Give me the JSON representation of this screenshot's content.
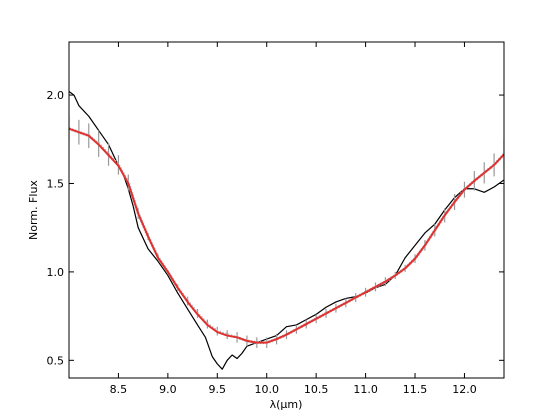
{
  "chart_data": {
    "type": "line",
    "title": "",
    "xlabel": "λ(μm)",
    "ylabel": "Norm. Flux",
    "xlim": [
      8.0,
      12.4
    ],
    "ylim": [
      0.4,
      2.3
    ],
    "xticks": [
      8.5,
      9.0,
      9.5,
      10.0,
      10.5,
      11.0,
      11.5,
      12.0
    ],
    "xtick_labels": [
      "8.5",
      "9.0",
      "9.5",
      "10.0",
      "10.5",
      "11.0",
      "11.5",
      "12.0"
    ],
    "yticks": [
      0.5,
      1.0,
      1.5,
      2.0
    ],
    "ytick_labels": [
      "0.5",
      "1.0",
      "1.5",
      "2.0"
    ],
    "grid": false,
    "series": [
      {
        "role": "observed",
        "color": "#000000",
        "style": "solid",
        "x": [
          8.0,
          8.05,
          8.1,
          8.2,
          8.3,
          8.4,
          8.5,
          8.55,
          8.6,
          8.65,
          8.7,
          8.8,
          8.9,
          9.0,
          9.1,
          9.2,
          9.3,
          9.38,
          9.45,
          9.5,
          9.55,
          9.6,
          9.65,
          9.7,
          9.75,
          9.8,
          9.9,
          10.0,
          10.1,
          10.2,
          10.3,
          10.4,
          10.5,
          10.6,
          10.7,
          10.8,
          10.9,
          11.0,
          11.1,
          11.2,
          11.3,
          11.4,
          11.5,
          11.6,
          11.7,
          11.8,
          11.9,
          12.0,
          12.1,
          12.2,
          12.3,
          12.4
        ],
        "y": [
          2.02,
          2.0,
          1.94,
          1.88,
          1.8,
          1.72,
          1.6,
          1.55,
          1.47,
          1.37,
          1.25,
          1.13,
          1.06,
          0.98,
          0.88,
          0.79,
          0.7,
          0.63,
          0.52,
          0.48,
          0.45,
          0.5,
          0.53,
          0.51,
          0.54,
          0.58,
          0.6,
          0.62,
          0.64,
          0.69,
          0.7,
          0.73,
          0.76,
          0.8,
          0.83,
          0.85,
          0.86,
          0.88,
          0.91,
          0.93,
          0.98,
          1.08,
          1.15,
          1.22,
          1.27,
          1.35,
          1.42,
          1.47,
          1.47,
          1.45,
          1.48,
          1.52
        ]
      },
      {
        "role": "model envelope",
        "color": "#999999",
        "style": "vertical error bars",
        "x": [
          8.0,
          8.1,
          8.2,
          8.3,
          8.4,
          8.5,
          8.6,
          8.7,
          8.8,
          8.9,
          9.0,
          9.1,
          9.2,
          9.3,
          9.4,
          9.5,
          9.6,
          9.7,
          9.8,
          9.9,
          10.0,
          10.1,
          10.2,
          10.3,
          10.4,
          10.5,
          10.6,
          10.7,
          10.8,
          10.9,
          11.0,
          11.1,
          11.2,
          11.3,
          11.4,
          11.5,
          11.6,
          11.7,
          11.8,
          11.9,
          12.0,
          12.1,
          12.2,
          12.3,
          12.4
        ],
        "y_low": [
          1.74,
          1.72,
          1.7,
          1.65,
          1.6,
          1.55,
          1.46,
          1.3,
          1.18,
          1.07,
          0.99,
          0.89,
          0.81,
          0.74,
          0.68,
          0.64,
          0.62,
          0.6,
          0.58,
          0.57,
          0.57,
          0.59,
          0.62,
          0.65,
          0.68,
          0.71,
          0.74,
          0.77,
          0.8,
          0.83,
          0.86,
          0.89,
          0.92,
          0.96,
          1.0,
          1.05,
          1.12,
          1.2,
          1.28,
          1.35,
          1.42,
          1.46,
          1.5,
          1.54,
          1.58
        ],
        "y_high": [
          1.88,
          1.86,
          1.84,
          1.8,
          1.73,
          1.66,
          1.55,
          1.36,
          1.22,
          1.1,
          1.01,
          0.93,
          0.86,
          0.79,
          0.73,
          0.69,
          0.67,
          0.66,
          0.64,
          0.63,
          0.63,
          0.65,
          0.67,
          0.7,
          0.73,
          0.76,
          0.79,
          0.82,
          0.85,
          0.88,
          0.91,
          0.94,
          0.97,
          1.0,
          1.04,
          1.1,
          1.18,
          1.27,
          1.36,
          1.44,
          1.51,
          1.57,
          1.62,
          1.67,
          1.75
        ]
      },
      {
        "role": "best fit",
        "color": "#e03030",
        "style": "solid",
        "x": [
          8.0,
          8.1,
          8.2,
          8.3,
          8.4,
          8.5,
          8.6,
          8.7,
          8.8,
          8.9,
          9.0,
          9.1,
          9.2,
          9.3,
          9.4,
          9.5,
          9.6,
          9.7,
          9.8,
          9.9,
          10.0,
          10.1,
          10.2,
          10.3,
          10.4,
          10.5,
          10.6,
          10.7,
          10.8,
          10.9,
          11.0,
          11.1,
          11.2,
          11.3,
          11.4,
          11.5,
          11.6,
          11.7,
          11.8,
          11.9,
          12.0,
          12.1,
          12.2,
          12.3,
          12.4
        ],
        "y": [
          1.81,
          1.79,
          1.77,
          1.72,
          1.66,
          1.6,
          1.5,
          1.33,
          1.2,
          1.08,
          1.0,
          0.91,
          0.83,
          0.76,
          0.7,
          0.66,
          0.64,
          0.63,
          0.61,
          0.6,
          0.6,
          0.62,
          0.645,
          0.675,
          0.705,
          0.735,
          0.765,
          0.795,
          0.825,
          0.855,
          0.885,
          0.915,
          0.945,
          0.98,
          1.02,
          1.075,
          1.15,
          1.235,
          1.32,
          1.395,
          1.465,
          1.515,
          1.56,
          1.605,
          1.665
        ]
      }
    ]
  }
}
